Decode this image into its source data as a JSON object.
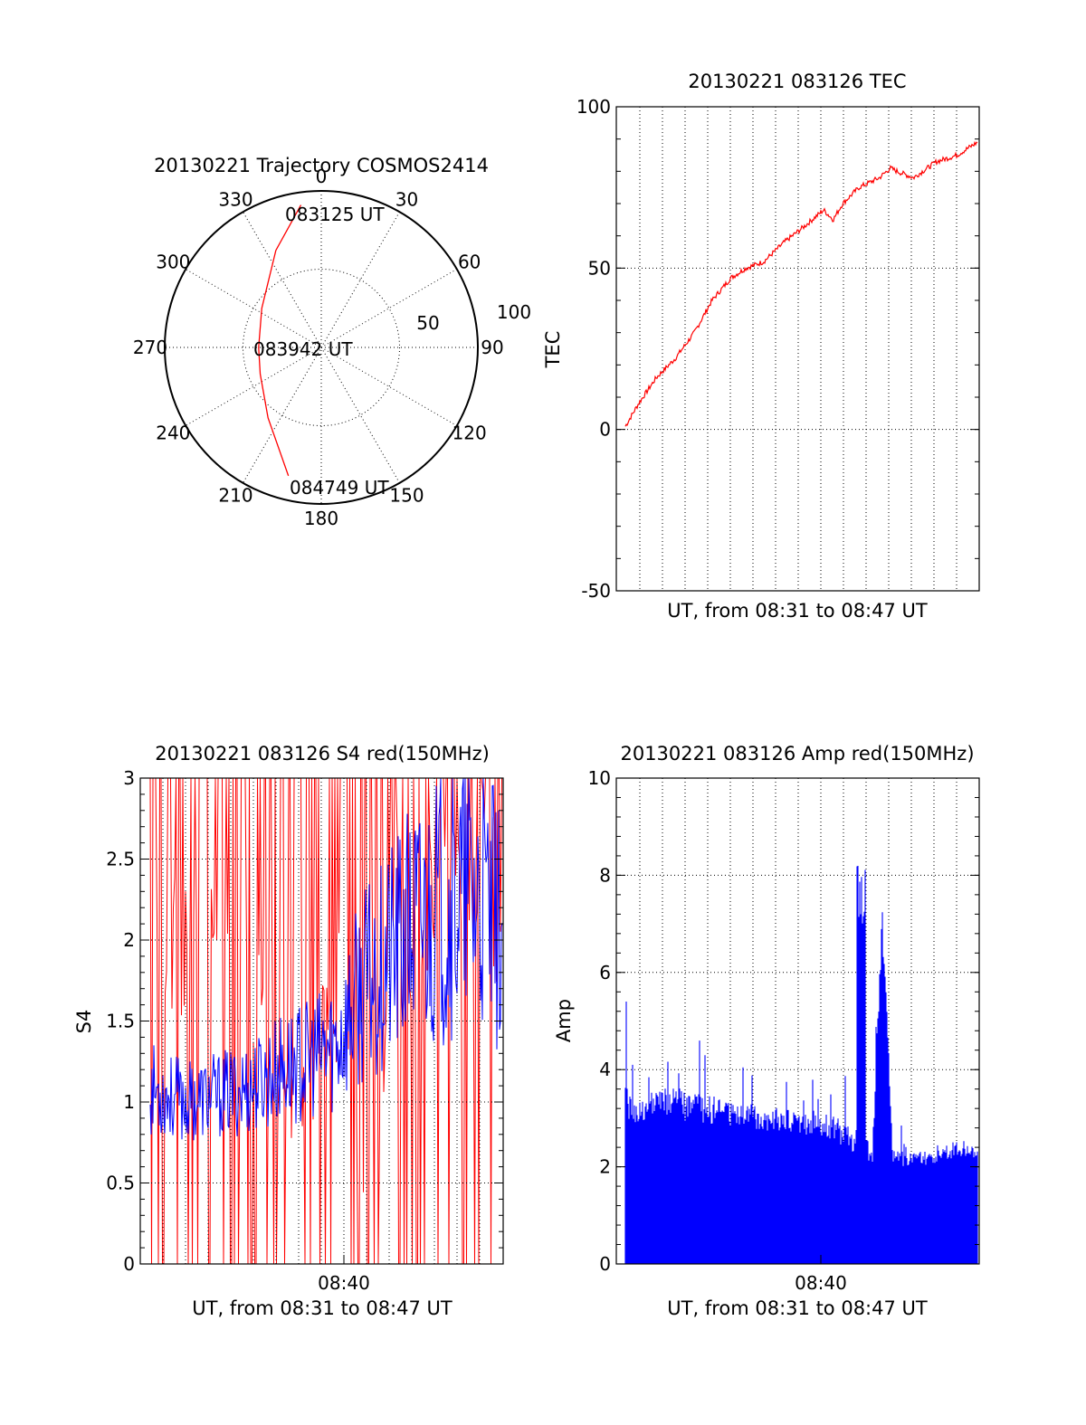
{
  "colors": {
    "trace_red": "#ff0000",
    "trace_blue": "#0000ff",
    "axis": "#000000",
    "background": "#ffffff"
  },
  "chart_data": [
    {
      "type": "polar",
      "title": "20130221 Trajectory COSMOS2414",
      "azimuth_labels": [
        "0",
        "30",
        "60",
        "90",
        "120",
        "150",
        "180",
        "210",
        "240",
        "270",
        "300",
        "330"
      ],
      "radius_labels": [
        "50",
        "100"
      ],
      "rlim": [
        0,
        100
      ],
      "grid": true,
      "trajectory": {
        "color": "#ff0000",
        "start_label": "083125 UT",
        "mid_label": "083942 UT",
        "end_label": "084749 UT",
        "points": [
          [
            -13,
            91
          ],
          [
            -29,
            62
          ],
          [
            -38,
            25
          ],
          [
            -40,
            0
          ],
          [
            -39,
            -17
          ],
          [
            -34,
            -45
          ],
          [
            -21,
            -82
          ]
        ]
      }
    },
    {
      "type": "line",
      "title": "20130221 083126 TEC",
      "xlabel": "UT, from 08:31 to 08:47 UT",
      "ylabel": "TEC",
      "ylim": [
        -50,
        100
      ],
      "yticks": [
        "100",
        "50",
        "0",
        "-50"
      ],
      "xlim": [
        8.5167,
        8.7833
      ],
      "grid": true,
      "series": [
        {
          "color": "#ff0000",
          "x": [
            8.522,
            8.533,
            8.546,
            8.56,
            8.574,
            8.587,
            8.601,
            8.612,
            8.625,
            8.64,
            8.655,
            8.669,
            8.676,
            8.683,
            8.695,
            8.71,
            8.718,
            8.723,
            8.735,
            8.752,
            8.767,
            8.782
          ],
          "y": [
            0,
            8,
            16,
            22,
            30,
            40,
            47,
            50,
            52,
            58,
            63,
            68,
            65,
            70,
            75,
            78,
            81,
            80,
            78,
            83,
            85,
            89
          ]
        }
      ]
    },
    {
      "type": "line",
      "title": "20130221 083126 S4 red(150MHz)",
      "xlabel": "UT, from 08:31 to 08:47 UT",
      "ylabel": "S4",
      "ylim": [
        0,
        3
      ],
      "yticks": [
        "3",
        "2.5",
        "2",
        "1.5",
        "1",
        "0.5",
        "0"
      ],
      "xlim": [
        8.5167,
        8.7833
      ],
      "xticks": [
        "08:40"
      ],
      "grid": true,
      "series": [
        {
          "color": "#ff0000",
          "x": [
            8.52,
            8.55,
            8.58,
            8.61,
            8.63,
            8.65,
            8.665,
            8.68,
            8.7,
            8.72,
            8.74,
            8.76,
            8.78
          ],
          "y": [
            1.6,
            1.9,
            1.7,
            1.5,
            1.3,
            1.4,
            1.6,
            0.4,
            2.0,
            2.2,
            2.5,
            2.6,
            2.3
          ]
        },
        {
          "color": "#0000ff",
          "x": [
            8.52,
            8.55,
            8.58,
            8.6,
            8.62,
            8.64,
            8.66,
            8.68,
            8.7,
            8.72,
            8.74,
            8.76,
            8.78
          ],
          "y": [
            1.1,
            1.0,
            1.05,
            1.1,
            1.2,
            1.25,
            1.35,
            1.7,
            1.9,
            2.1,
            2.2,
            2.3,
            2.1
          ]
        }
      ]
    },
    {
      "type": "bar",
      "title": "20130221 083126 Amp red(150MHz)",
      "xlabel": "UT, from 08:31 to 08:47 UT",
      "ylabel": "Amp",
      "ylim": [
        0,
        10
      ],
      "yticks": [
        "10",
        "8",
        "6",
        "4",
        "2",
        "0"
      ],
      "xlim": [
        8.5167,
        8.7833
      ],
      "xticks": [
        "08:40"
      ],
      "grid": true,
      "series": [
        {
          "color": "#0000ff",
          "x": [
            8.522,
            8.53,
            8.55,
            8.58,
            8.61,
            8.64,
            8.67,
            8.69,
            8.705,
            8.712,
            8.72,
            8.74,
            8.76,
            8.782
          ],
          "y": [
            3.0,
            2.9,
            3.0,
            2.9,
            2.8,
            2.7,
            2.6,
            2.3,
            2.0,
            6.8,
            2.0,
            2.0,
            2.1,
            2.2
          ],
          "peak": [
            5.4,
            4.0,
            4.9,
            4.6,
            4.3,
            4.1,
            4.2,
            3.8,
            3.5,
            8.8,
            3.0,
            2.9,
            3.4,
            2.8
          ]
        }
      ]
    }
  ]
}
